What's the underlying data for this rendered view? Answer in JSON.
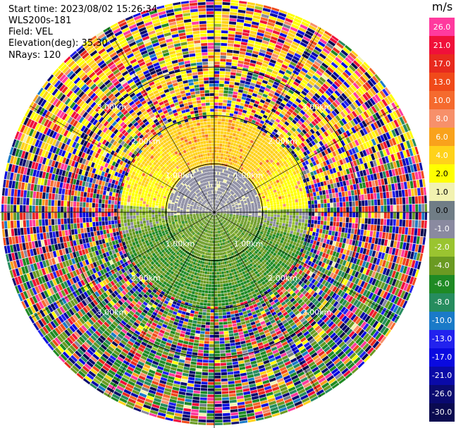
{
  "header": {
    "start_time": "Start time: 2023/08/02 15:26:34",
    "instrument": "WLS200s-181",
    "field": "Field: VEL",
    "elevation": "Elevation(deg): 35.30",
    "nrays": "NRays: 120"
  },
  "colorbar": {
    "unit": "m/s",
    "levels": [
      {
        "label": "26.0",
        "color": "#ff3a9e"
      },
      {
        "label": "21.0",
        "color": "#f0103a"
      },
      {
        "label": "17.0",
        "color": "#e82a1e"
      },
      {
        "label": "13.0",
        "color": "#f04a1a"
      },
      {
        "label": "10.0",
        "color": "#f56a2e"
      },
      {
        "label": "8.0",
        "color": "#f7906a"
      },
      {
        "label": "6.0",
        "color": "#f9a21c"
      },
      {
        "label": "4.0",
        "color": "#ffd21a"
      },
      {
        "label": "2.0",
        "color": "#ffff00"
      },
      {
        "label": "1.0",
        "color": "#f2f2b0"
      },
      {
        "label": "0.0",
        "color": "#707d86"
      },
      {
        "label": "-1.0",
        "color": "#8a8aa0"
      },
      {
        "label": "-2.0",
        "color": "#9ac430"
      },
      {
        "label": "-4.0",
        "color": "#6a9a22"
      },
      {
        "label": "-6.0",
        "color": "#1f8a24"
      },
      {
        "label": "-8.0",
        "color": "#268c5e"
      },
      {
        "label": "-10.0",
        "color": "#1a7ac8"
      },
      {
        "label": "-13.0",
        "color": "#2222ee"
      },
      {
        "label": "-17.0",
        "color": "#0a0ae0"
      },
      {
        "label": "-21.0",
        "color": "#0a0aa8"
      },
      {
        "label": "-26.0",
        "color": "#0a0a70"
      },
      {
        "label": "-30.0",
        "color": "#0a0a50"
      }
    ]
  },
  "chart_data": {
    "type": "heatmap",
    "subtype": "polar-ppi",
    "title": "",
    "field": "VEL",
    "units": "m/s",
    "elevation_deg": 35.3,
    "nrays": 120,
    "range_rings_km": [
      1.0,
      2.0,
      3.0
    ],
    "range_ring_labels": [
      "1.00km",
      "2.00km",
      "3.00km"
    ],
    "max_range_km": 4.4,
    "spokes_deg": [
      0,
      30,
      60,
      90,
      120,
      150,
      180,
      210,
      240,
      270,
      300,
      330
    ],
    "clim": [
      -30.0,
      26.0
    ],
    "structure": [
      {
        "range_km": [
          0.0,
          1.0
        ],
        "sector": "north",
        "velocity_ms": -0.5,
        "description_color": "grey"
      },
      {
        "range_km": [
          0.0,
          1.0
        ],
        "sector": "south",
        "velocity_ms": -3.0,
        "description_color": "green"
      },
      {
        "range_km": [
          0.6,
          1.9
        ],
        "sector": "north",
        "velocity_ms": 3.5,
        "description_color": "yellow-orange"
      },
      {
        "range_km": [
          0.6,
          1.9
        ],
        "sector": "south",
        "velocity_ms": -5.0,
        "description_color": "green"
      },
      {
        "range_km": [
          1.9,
          4.4
        ],
        "sector": "all",
        "velocity_ms": null,
        "description_color": "noisy"
      }
    ]
  }
}
